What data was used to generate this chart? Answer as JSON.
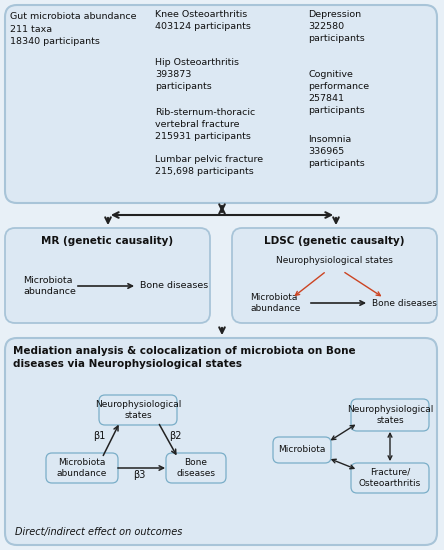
{
  "fig_bg": "#e8f0f7",
  "panel_bg": "#dce8f3",
  "panel_edge": "#a8c4d8",
  "small_box_bg": "#dce8f3",
  "small_box_edge": "#7aaec8",
  "text_color": "#111111",
  "arrow_color": "#222222",
  "arrow_color2": "#cc4422",
  "panel1": {
    "gut_text": "Gut microbiota abundance\n211 taxa\n18340 participants",
    "bone_diseases": [
      "Knee Osteoarthritis\n403124 participants",
      "Hip Osteoarthritis\n393873\nparticipants",
      "Rib-sternum-thoracic\nvertebral fracture\n215931 participants",
      "Lumbar pelvic fracture\n215,698 participants"
    ],
    "neuro_diseases": [
      "Depression\n322580\nparticipants",
      "Cognitive\nperformance\n257841\nparticipants",
      "Insomnia\n336965\nparticipants"
    ]
  },
  "panel2_left_title": "MR (genetic causality)",
  "panel2_left_n1": "Microbiota\nabundance",
  "panel2_left_n2": "Bone diseases",
  "panel2_right_title": "LDSC (genetic causalty)",
  "panel2_right_neuro": "Neurophysiological states",
  "panel2_right_n1": "Microbiota\nabundance",
  "panel2_right_n2": "Bone diseases",
  "panel3_title": "Mediation analysis & colocalization of microbiota on Bone\ndiseases via Neurophysiological states",
  "panel3_left_neuro": "Neurophysiological\nstates",
  "panel3_left_micro": "Microbiota\nabundance",
  "panel3_left_bone": "Bone\ndiseases",
  "b1": "β1",
  "b2": "β2",
  "b3": "β3",
  "caption": "Direct/indirect effect on outcomes",
  "panel3_right_micro": "Microbiota",
  "panel3_right_neuro": "Neurophysiological\nstates",
  "panel3_right_fracture": "Fracture/\nOsteoarthritis"
}
